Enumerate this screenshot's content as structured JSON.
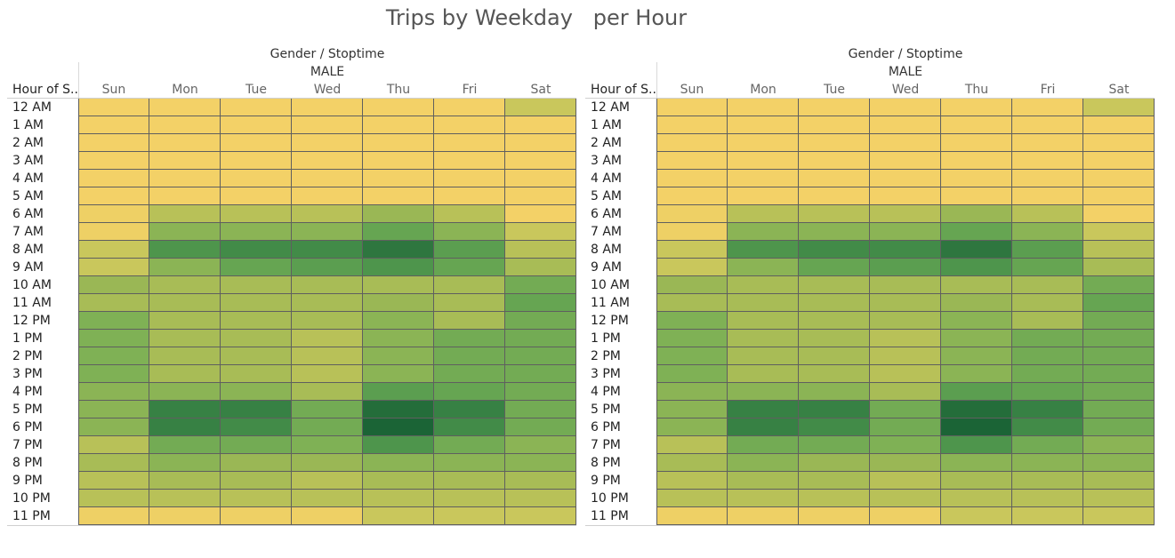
{
  "title": "Trips by Weekday   per Hour",
  "panels": [
    {
      "header_top": "Gender / Stoptime",
      "header_sub": "MALE",
      "row_header": "Hour of S.."
    },
    {
      "header_top": "Gender / Stoptime",
      "header_sub": "MALE",
      "row_header": "Hour of S.."
    }
  ],
  "colors": {
    "scale": [
      "#f3d167",
      "#eed065",
      "#e4cd63",
      "#d6ca60",
      "#c9c75c",
      "#b8c158",
      "#a8bc56",
      "#9ab755",
      "#8bb455",
      "#7fb155",
      "#73ab54",
      "#66a552",
      "#5b9e50",
      "#4e954c",
      "#428b48",
      "#378144",
      "#2e763f",
      "#246d3a",
      "#1b6436"
    ]
  },
  "chart_data": {
    "type": "heatmap",
    "title": "Trips by Weekday   per Hour",
    "xlabel": "Gender / Stoptime",
    "group": "MALE",
    "ylabel": "Hour of S..",
    "categories": [
      "Sun",
      "Mon",
      "Tue",
      "Wed",
      "Thu",
      "Fri",
      "Sat"
    ],
    "rows": [
      "12 AM",
      "1 AM",
      "2 AM",
      "3 AM",
      "4 AM",
      "5 AM",
      "6 AM",
      "7 AM",
      "8 AM",
      "9 AM",
      "10 AM",
      "11 AM",
      "12 PM",
      "1 PM",
      "2 PM",
      "3 PM",
      "4 PM",
      "5 PM",
      "6 PM",
      "7 PM",
      "8 PM",
      "9 PM",
      "10 PM",
      "11 PM"
    ],
    "values": [
      [
        0.02,
        0.01,
        0.01,
        0.01,
        0.01,
        0.01,
        0.22
      ],
      [
        0.01,
        0.0,
        0.0,
        0.0,
        0.0,
        0.0,
        0.01
      ],
      [
        0.0,
        0.0,
        0.0,
        0.0,
        0.0,
        0.0,
        0.0
      ],
      [
        0.0,
        0.0,
        0.0,
        0.0,
        0.0,
        0.0,
        0.0
      ],
      [
        0.0,
        0.0,
        0.0,
        0.0,
        0.0,
        0.0,
        0.0
      ],
      [
        0.0,
        0.0,
        0.0,
        0.0,
        0.0,
        0.0,
        0.0
      ],
      [
        0.03,
        0.25,
        0.25,
        0.25,
        0.38,
        0.25,
        0.02
      ],
      [
        0.03,
        0.45,
        0.42,
        0.42,
        0.62,
        0.42,
        0.22
      ],
      [
        0.2,
        0.72,
        0.8,
        0.75,
        0.88,
        0.68,
        0.25
      ],
      [
        0.22,
        0.45,
        0.6,
        0.65,
        0.7,
        0.6,
        0.33
      ],
      [
        0.38,
        0.33,
        0.33,
        0.33,
        0.35,
        0.33,
        0.58
      ],
      [
        0.35,
        0.33,
        0.33,
        0.33,
        0.38,
        0.33,
        0.6
      ],
      [
        0.52,
        0.33,
        0.33,
        0.33,
        0.42,
        0.33,
        0.58
      ],
      [
        0.52,
        0.33,
        0.33,
        0.3,
        0.45,
        0.55,
        0.58
      ],
      [
        0.48,
        0.33,
        0.33,
        0.3,
        0.45,
        0.55,
        0.58
      ],
      [
        0.48,
        0.33,
        0.33,
        0.3,
        0.45,
        0.55,
        0.58
      ],
      [
        0.45,
        0.45,
        0.42,
        0.32,
        0.68,
        0.62,
        0.58
      ],
      [
        0.45,
        0.85,
        0.83,
        0.58,
        0.97,
        0.82,
        0.55
      ],
      [
        0.45,
        0.82,
        0.8,
        0.58,
        1.0,
        0.75,
        0.55
      ],
      [
        0.3,
        0.55,
        0.55,
        0.48,
        0.72,
        0.55,
        0.45
      ],
      [
        0.35,
        0.42,
        0.4,
        0.38,
        0.45,
        0.42,
        0.42
      ],
      [
        0.25,
        0.33,
        0.33,
        0.25,
        0.35,
        0.33,
        0.33
      ],
      [
        0.25,
        0.25,
        0.25,
        0.25,
        0.25,
        0.28,
        0.28
      ],
      [
        0.05,
        0.04,
        0.04,
        0.04,
        0.22,
        0.22,
        0.2
      ]
    ],
    "grid": true,
    "legend": "none"
  }
}
